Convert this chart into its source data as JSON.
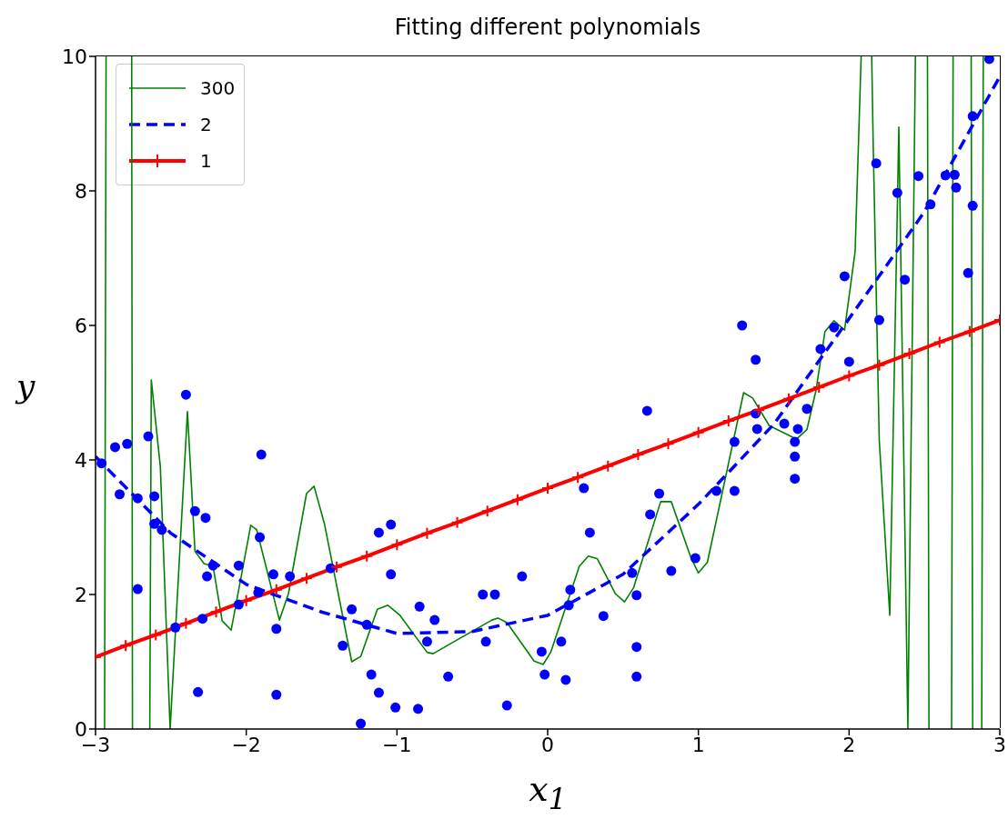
{
  "chart_data": {
    "type": "scatter",
    "title": "Fitting different polynomials",
    "xlabel": "x$_{1}$",
    "ylabel": "y",
    "xlim": [
      -3,
      3
    ],
    "xticks": [
      -3,
      -2,
      -1,
      0,
      1,
      2,
      3
    ],
    "ylim": [
      0,
      10
    ],
    "yticks": [
      0,
      2,
      4,
      6,
      8,
      10
    ],
    "grid": false,
    "legend": "top left",
    "series": [
      {
        "color": "#0000ff",
        "marker": "circle",
        "x": [
          -2.96,
          -2.87,
          -2.79,
          -2.84,
          -2.65,
          -2.72,
          -2.61,
          -2.61,
          -2.56,
          -2.72,
          -2.47,
          -2.4,
          -2.34,
          -2.27,
          -2.26,
          -2.32,
          -2.22,
          -2.05,
          -2.05,
          -2.29,
          -1.9,
          -1.91,
          -1.92,
          -1.82,
          -1.8,
          -1.8,
          -1.71,
          -1.44,
          -1.36,
          -1.3,
          -1.24,
          -1.2,
          -1.17,
          -1.12,
          -1.12,
          -1.04,
          -1.04,
          -1.01,
          -0.86,
          -0.85,
          -0.75,
          -0.8,
          -0.66,
          -0.43,
          -0.41,
          -0.35,
          -0.27,
          -0.17,
          -0.04,
          -0.02,
          0.09,
          0.12,
          0.14,
          0.15,
          0.24,
          0.28,
          0.37,
          0.56,
          0.59,
          0.59,
          0.59,
          0.68,
          0.66,
          0.74,
          0.82,
          0.98,
          1.12,
          1.24,
          1.24,
          1.29,
          1.38,
          1.38,
          1.39,
          1.57,
          1.66,
          1.64,
          1.64,
          1.64,
          1.72,
          1.81,
          1.9,
          2.0,
          1.97,
          2.18,
          2.2,
          2.32,
          2.37,
          2.46,
          2.54,
          2.64,
          2.7,
          2.71,
          2.82,
          2.82,
          2.79,
          2.93
        ],
        "values": [
          3.95,
          4.19,
          4.24,
          3.49,
          4.35,
          3.43,
          3.46,
          3.05,
          2.96,
          2.08,
          1.51,
          4.97,
          3.24,
          3.14,
          2.27,
          0.55,
          2.43,
          2.43,
          1.85,
          1.64,
          4.08,
          2.85,
          2.03,
          2.3,
          1.49,
          0.51,
          2.27,
          2.39,
          1.24,
          1.78,
          0.08,
          1.55,
          0.81,
          2.92,
          0.54,
          3.04,
          2.3,
          0.32,
          0.3,
          1.82,
          1.62,
          1.3,
          0.78,
          2.0,
          1.3,
          2.0,
          0.35,
          2.27,
          1.15,
          0.81,
          1.3,
          0.73,
          1.84,
          2.07,
          3.58,
          2.92,
          1.68,
          2.32,
          1.99,
          1.22,
          0.78,
          3.19,
          4.73,
          3.5,
          2.35,
          2.54,
          3.54,
          3.54,
          4.27,
          6.0,
          5.49,
          4.69,
          4.46,
          4.54,
          4.46,
          4.27,
          4.05,
          3.72,
          4.76,
          5.65,
          5.97,
          5.46,
          6.73,
          8.41,
          6.08,
          7.97,
          6.68,
          8.22,
          7.8,
          8.23,
          8.24,
          8.05,
          9.11,
          7.78,
          6.78,
          9.96
        ]
      },
      {
        "type": "line",
        "name": "300",
        "color": "#008000",
        "marker": "none",
        "line_style": "solid",
        "x": [
          -2.94,
          -2.93,
          -2.8,
          -2.76,
          -2.755,
          -2.7,
          -2.64,
          -2.63,
          -2.57,
          -2.505,
          -2.39,
          -2.34,
          -2.28,
          -2.22,
          -2.16,
          -2.1,
          -1.97,
          -1.93,
          -1.78,
          -1.72,
          -1.6,
          -1.55,
          -1.48,
          -1.3,
          -1.24,
          -1.13,
          -1.06,
          -0.98,
          -0.8,
          -0.76,
          -0.37,
          -0.33,
          -0.27,
          -0.09,
          -0.03,
          0.02,
          0.13,
          0.21,
          0.27,
          0.33,
          0.45,
          0.51,
          0.57,
          0.75,
          0.82,
          0.95,
          1.0,
          1.06,
          1.3,
          1.36,
          1.47,
          1.65,
          1.72,
          1.78,
          1.84,
          1.9,
          1.97,
          2.04,
          2.08,
          2.12,
          2.15,
          2.16,
          2.2,
          2.27,
          2.33,
          2.39,
          2.44,
          2.48,
          2.52,
          2.53,
          2.6,
          2.68,
          2.69,
          2.75,
          2.81,
          2.82,
          2.85,
          2.88,
          2.89
        ],
        "values": [
          0,
          10,
          null,
          10,
          0,
          null,
          0,
          5.19,
          3.9,
          0,
          4.72,
          2.64,
          2.46,
          2.42,
          1.61,
          1.47,
          3.03,
          2.96,
          1.62,
          2.01,
          3.5,
          3.61,
          3.04,
          1.0,
          1.08,
          1.78,
          1.84,
          1.69,
          1.14,
          1.12,
          1.62,
          1.65,
          1.58,
          1.01,
          0.96,
          1.14,
          1.88,
          2.42,
          2.57,
          2.53,
          2.01,
          1.89,
          2.1,
          3.38,
          3.38,
          2.55,
          2.32,
          2.48,
          5.0,
          4.92,
          4.51,
          4.31,
          4.45,
          5.03,
          5.91,
          6.07,
          5.93,
          7.1,
          10,
          null,
          10,
          8.68,
          4.3,
          1.69,
          8.95,
          0,
          10,
          null,
          10,
          0,
          null,
          0,
          10,
          null,
          10,
          0,
          null,
          0,
          10
        ]
      },
      {
        "type": "line",
        "name": "2",
        "color": "#0000ff",
        "marker": "none",
        "line_style": "dashed",
        "x": [
          -3,
          -2.5,
          -2,
          -1.5,
          -1,
          -0.5,
          0,
          0.5,
          1,
          1.5,
          2,
          2.5,
          3
        ],
        "values": [
          4.05,
          2.91,
          2.15,
          1.74,
          1.42,
          1.45,
          1.69,
          2.3,
          3.34,
          4.53,
          6.1,
          7.69,
          9.7
        ]
      },
      {
        "type": "line",
        "name": "1",
        "color": "#ff0000",
        "marker": "cross",
        "line_style": "solid",
        "x": [
          -3,
          -2.8,
          -2.6,
          -2.4,
          -2.2,
          -2,
          -1.8,
          -1.6,
          -1.4,
          -1.2,
          -1,
          -0.8,
          -0.6,
          -0.4,
          -0.2,
          0,
          0.2,
          0.4,
          0.6,
          0.8,
          1,
          1.2,
          1.4,
          1.6,
          1.8,
          2,
          2.2,
          2.4,
          2.6,
          2.8,
          3
        ],
        "values": [
          1.07,
          1.24,
          1.4,
          1.57,
          1.74,
          1.91,
          2.07,
          2.24,
          2.41,
          2.57,
          2.74,
          2.91,
          3.07,
          3.24,
          3.41,
          3.58,
          3.74,
          3.91,
          4.08,
          4.24,
          4.41,
          4.58,
          4.74,
          4.91,
          5.08,
          5.25,
          5.41,
          5.58,
          5.75,
          5.91,
          6.08
        ]
      }
    ]
  }
}
